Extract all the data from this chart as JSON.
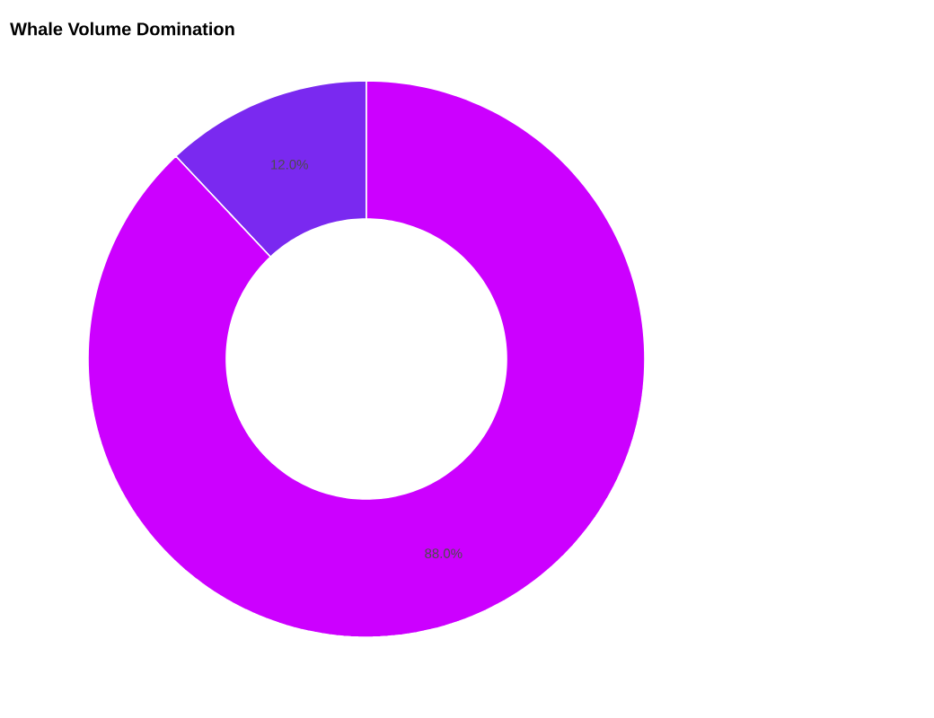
{
  "chart_data": {
    "type": "donut",
    "title": "Whale Volume Domination",
    "categories": [
      null,
      null
    ],
    "values": [
      12.0,
      88.0
    ],
    "colors": [
      "#7a29f0",
      "#cc00ff"
    ],
    "value_labels": [
      "12.0%",
      "88.0%"
    ]
  }
}
